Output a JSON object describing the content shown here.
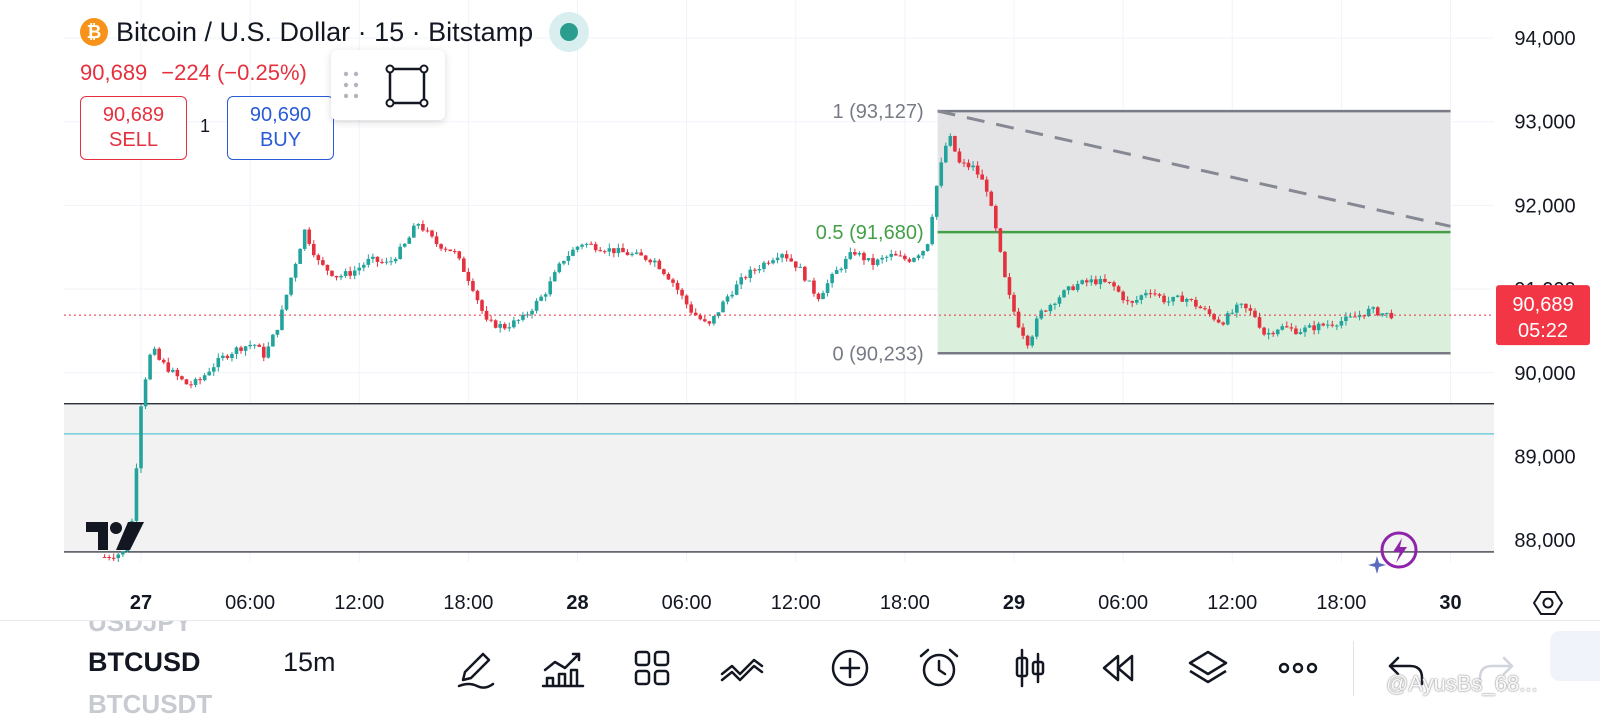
{
  "header": {
    "symbol_title": "Bitcoin / U.S. Dollar · 15 · Bitstamp",
    "btc_glyph": "₿",
    "last_price": "90,689",
    "change": "−224 (−0.25%)",
    "sell_price": "90,689",
    "sell_label": "SELL",
    "buy_price": "90,690",
    "buy_label": "BUY",
    "quantity": "1"
  },
  "colors": {
    "up": "#22a39b",
    "down": "#e5303e",
    "fib_green": "#43a047",
    "accent_blue": "#2a5bd7",
    "price_tag": "#f23645",
    "cyan_line": "#5bc8d8"
  },
  "chart_data": {
    "type": "line",
    "subtype": "candlestick",
    "symbol": "BTCUSD",
    "interval": "15",
    "ylim": [
      87600,
      94500
    ],
    "y_ticks": [
      "94,000",
      "93,000",
      "92,000",
      "91,000",
      "90,000",
      "89,000",
      "88,000"
    ],
    "y_tick_values": [
      94000,
      93000,
      92000,
      91000,
      90000,
      89000,
      88000
    ],
    "x_ticks": [
      {
        "label": "27",
        "bold": true
      },
      {
        "label": "06:00",
        "bold": false
      },
      {
        "label": "12:00",
        "bold": false
      },
      {
        "label": "18:00",
        "bold": false
      },
      {
        "label": "28",
        "bold": true
      },
      {
        "label": "06:00",
        "bold": false
      },
      {
        "label": "12:00",
        "bold": false
      },
      {
        "label": "18:00",
        "bold": false
      },
      {
        "label": "29",
        "bold": true
      },
      {
        "label": "06:00",
        "bold": false
      },
      {
        "label": "12:00",
        "bold": false
      },
      {
        "label": "18:00",
        "bold": false
      },
      {
        "label": "30",
        "bold": true
      }
    ],
    "x_hours": [
      0,
      6,
      12,
      18,
      24,
      30,
      36,
      42,
      48,
      54,
      60,
      66,
      72
    ],
    "series_path": [
      [
        -2.0,
        87800
      ],
      [
        -1.0,
        87850
      ],
      [
        -0.4,
        88300
      ],
      [
        -0.1,
        89500
      ],
      [
        0.2,
        89900
      ],
      [
        0.6,
        90300
      ],
      [
        1.0,
        90150
      ],
      [
        2.0,
        89950
      ],
      [
        2.6,
        89850
      ],
      [
        3.2,
        89900
      ],
      [
        3.8,
        90050
      ],
      [
        4.6,
        90200
      ],
      [
        5.4,
        90300
      ],
      [
        6.2,
        90350
      ],
      [
        6.8,
        90200
      ],
      [
        7.6,
        90600
      ],
      [
        8.2,
        91100
      ],
      [
        9.0,
        91700
      ],
      [
        9.8,
        91300
      ],
      [
        10.8,
        91150
      ],
      [
        11.6,
        91200
      ],
      [
        12.6,
        91350
      ],
      [
        13.6,
        91300
      ],
      [
        14.6,
        91550
      ],
      [
        15.2,
        91800
      ],
      [
        16.2,
        91550
      ],
      [
        17.2,
        91450
      ],
      [
        18.2,
        91050
      ],
      [
        19.0,
        90600
      ],
      [
        20.0,
        90550
      ],
      [
        21.0,
        90650
      ],
      [
        22.2,
        90950
      ],
      [
        23.2,
        91350
      ],
      [
        24.2,
        91550
      ],
      [
        25.2,
        91500
      ],
      [
        26.2,
        91450
      ],
      [
        27.2,
        91400
      ],
      [
        28.2,
        91350
      ],
      [
        29.2,
        91100
      ],
      [
        30.2,
        90750
      ],
      [
        31.2,
        90550
      ],
      [
        32.2,
        90900
      ],
      [
        33.2,
        91150
      ],
      [
        34.2,
        91300
      ],
      [
        35.2,
        91450
      ],
      [
        36.2,
        91250
      ],
      [
        37.2,
        90900
      ],
      [
        38.2,
        91200
      ],
      [
        39.2,
        91450
      ],
      [
        40.2,
        91300
      ],
      [
        41.2,
        91400
      ],
      [
        42.2,
        91350
      ],
      [
        43.2,
        91500
      ],
      [
        43.8,
        92300
      ],
      [
        44.4,
        92850
      ],
      [
        45.0,
        92500
      ],
      [
        45.8,
        92450
      ],
      [
        46.5,
        92200
      ],
      [
        47.0,
        91700
      ],
      [
        47.6,
        91000
      ],
      [
        48.2,
        90600
      ],
      [
        48.8,
        90350
      ],
      [
        49.4,
        90700
      ],
      [
        50.4,
        90900
      ],
      [
        51.4,
        91050
      ],
      [
        52.4,
        91100
      ],
      [
        53.4,
        91050
      ],
      [
        54.4,
        90800
      ],
      [
        55.4,
        91000
      ],
      [
        56.4,
        90850
      ],
      [
        57.4,
        90900
      ],
      [
        58.4,
        90750
      ],
      [
        59.4,
        90600
      ],
      [
        60.4,
        90800
      ],
      [
        61.2,
        90700
      ],
      [
        61.8,
        90450
      ],
      [
        62.6,
        90550
      ],
      [
        63.6,
        90500
      ],
      [
        64.6,
        90550
      ],
      [
        65.6,
        90600
      ],
      [
        66.6,
        90650
      ],
      [
        67.6,
        90750
      ],
      [
        68.4,
        90700
      ],
      [
        68.9,
        90689
      ]
    ],
    "last_price": {
      "value": 90689,
      "label": "90,689",
      "countdown": "05:22"
    },
    "fib_retracement": {
      "start_hour": 43.8,
      "end_hour": 72,
      "levels": [
        {
          "ratio": "1",
          "value": 93127,
          "label": "1 (93,127)"
        },
        {
          "ratio": "0.5",
          "value": 91680,
          "label": "0.5 (91,680)"
        },
        {
          "ratio": "0",
          "value": 90233,
          "label": "0 (90,233)"
        }
      ],
      "trend_line": {
        "from": [
          43.8,
          93127
        ],
        "to": [
          72,
          91750
        ]
      }
    },
    "horizontal_lines": [
      {
        "value": 89630,
        "color": "#131722"
      },
      {
        "value": 89270,
        "color": "#5bc8d8"
      },
      {
        "value": 87860,
        "color": "#131722"
      }
    ],
    "shaded_zone": {
      "from": 87860,
      "to": 89630
    },
    "grid": true
  },
  "drawing_toolbar": {
    "grip_icon": "grip-dots-icon",
    "tool_icon": "rectangle-tool-icon"
  },
  "bottom_bar": {
    "symbol_prev": "USDJPY",
    "symbol_current": "BTCUSD",
    "symbol_next": "BTCUSDT",
    "interval": "15m",
    "icons": [
      "pen-icon",
      "indicators-icon",
      "grid-layout-icon",
      "draw-trend-icon",
      "add-circle-icon",
      "alarm-icon",
      "candle-icon",
      "replay-icon",
      "layers-icon",
      "more-icon",
      "undo-icon",
      "redo-icon"
    ],
    "watermark": "@AyusBs_68..."
  }
}
